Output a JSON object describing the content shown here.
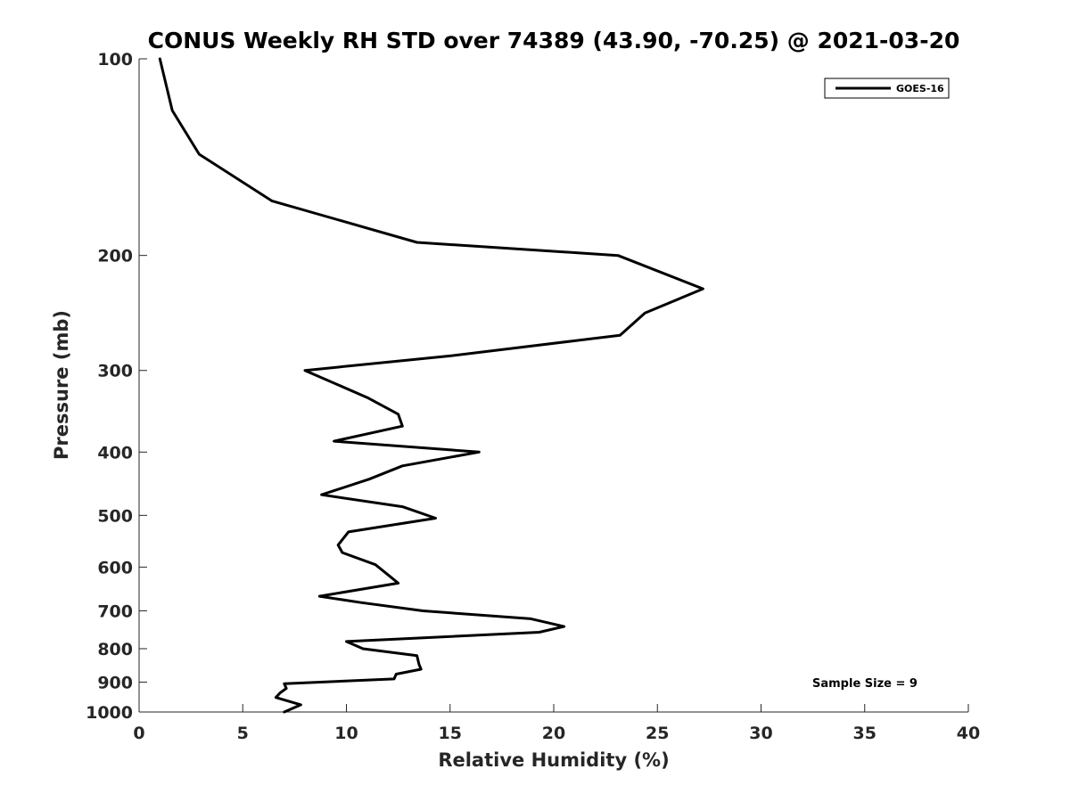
{
  "chart_data": {
    "type": "line",
    "title": "CONUS Weekly RH STD over 74389 (43.90, -70.25) @ 2021-03-20",
    "xlabel": "Relative Humidity (%)",
    "ylabel": "Pressure (mb)",
    "xlim": [
      0,
      40
    ],
    "ylim": [
      1000,
      100
    ],
    "y_scale": "log",
    "y_direction": "reversed",
    "grid": false,
    "legend_position": "top-right",
    "x_ticks": [
      0,
      5,
      10,
      15,
      20,
      25,
      30,
      35,
      40
    ],
    "y_ticks": [
      100,
      200,
      300,
      400,
      500,
      600,
      700,
      800,
      900,
      1000
    ],
    "series": [
      {
        "name": "GOES-16",
        "color": "#000000",
        "points": [
          [
            1.0,
            100
          ],
          [
            1.6,
            120
          ],
          [
            2.9,
            140
          ],
          [
            6.4,
            165
          ],
          [
            13.4,
            191
          ],
          [
            23.1,
            200
          ],
          [
            27.2,
            225
          ],
          [
            24.4,
            245
          ],
          [
            23.2,
            265
          ],
          [
            15.0,
            285
          ],
          [
            8.0,
            300
          ],
          [
            11.0,
            330
          ],
          [
            12.5,
            350
          ],
          [
            12.7,
            365
          ],
          [
            9.4,
            385
          ],
          [
            16.4,
            400
          ],
          [
            12.7,
            420
          ],
          [
            11.1,
            440
          ],
          [
            8.8,
            465
          ],
          [
            12.7,
            485
          ],
          [
            14.3,
            505
          ],
          [
            10.1,
            530
          ],
          [
            9.6,
            555
          ],
          [
            9.8,
            570
          ],
          [
            11.4,
            595
          ],
          [
            12.1,
            620
          ],
          [
            12.5,
            635
          ],
          [
            8.7,
            665
          ],
          [
            10.7,
            680
          ],
          [
            13.7,
            700
          ],
          [
            18.9,
            720
          ],
          [
            20.5,
            740
          ],
          [
            19.3,
            755
          ],
          [
            10.0,
            780
          ],
          [
            10.8,
            800
          ],
          [
            13.4,
            820
          ],
          [
            13.5,
            845
          ],
          [
            13.6,
            860
          ],
          [
            12.4,
            875
          ],
          [
            12.3,
            890
          ],
          [
            7.0,
            905
          ],
          [
            7.1,
            920
          ],
          [
            6.8,
            935
          ],
          [
            6.6,
            950
          ],
          [
            7.8,
            975
          ],
          [
            7.0,
            1000
          ]
        ]
      }
    ],
    "annotation": "Sample Size = 9"
  }
}
